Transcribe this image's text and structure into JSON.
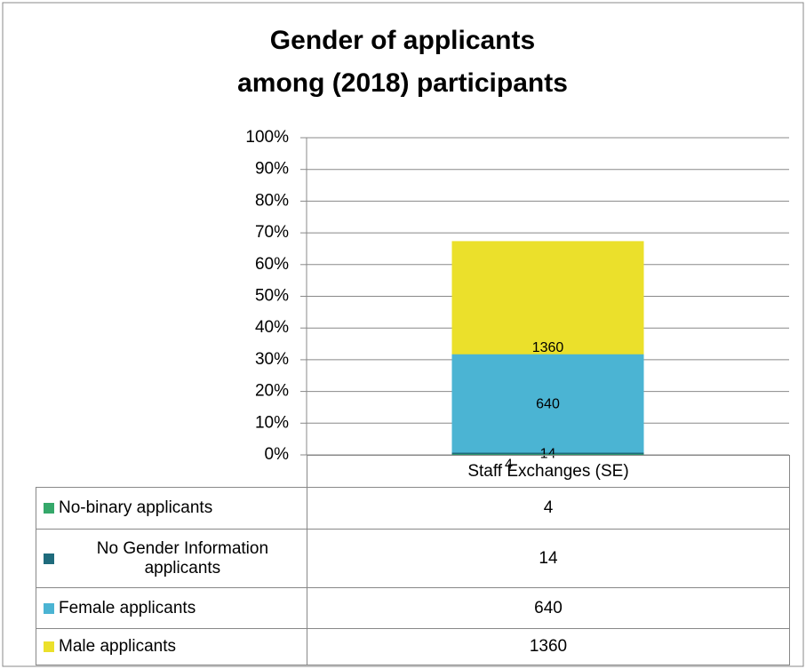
{
  "chart_data": {
    "type": "bar",
    "stacking": "percent",
    "title": [
      "Gender of applicants",
      "among (2018) participants"
    ],
    "categories": [
      "Staff Exchanges (SE)"
    ],
    "series": [
      {
        "name": "No-binary applicants",
        "color": "#35a86a",
        "values": [
          4
        ]
      },
      {
        "name": "No Gender Information applicants",
        "color": "#1f6b7c",
        "values": [
          14
        ]
      },
      {
        "name": "Female applicants",
        "color": "#4bb4d3",
        "values": [
          640
        ]
      },
      {
        "name": "Male applicants",
        "color": "#ebe02b",
        "values": [
          1360
        ]
      }
    ],
    "ylim": [
      0,
      100
    ],
    "yticks": [
      {
        "value": 0,
        "label": "0%"
      },
      {
        "value": 10,
        "label": "10%"
      },
      {
        "value": 20,
        "label": "20%"
      },
      {
        "value": 30,
        "label": "30%"
      },
      {
        "value": 40,
        "label": "40%"
      },
      {
        "value": 50,
        "label": "50%"
      },
      {
        "value": 60,
        "label": "60%"
      },
      {
        "value": 70,
        "label": "70%"
      },
      {
        "value": 80,
        "label": "80%"
      },
      {
        "value": 90,
        "label": "90%"
      },
      {
        "value": 100,
        "label": "100%"
      }
    ],
    "grid": true
  }
}
